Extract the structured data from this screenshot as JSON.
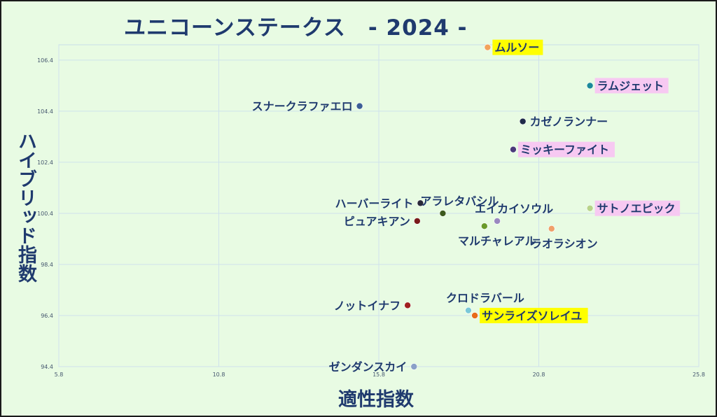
{
  "title": "ユニコーンステークス　- 2024 -",
  "chart_data": {
    "type": "scatter",
    "title": "ユニコーンステークス　- 2024 -",
    "xlabel": "適性指数",
    "ylabel": "ハイブリッド指数",
    "xlim": [
      5.8,
      25.8
    ],
    "ylim": [
      94.4,
      107.0
    ],
    "xticks": [
      "5.8",
      "10.8",
      "15.8",
      "20.8",
      "25.8"
    ],
    "yticks": [
      "94.4",
      "96.4",
      "98.4",
      "100.4",
      "102.4",
      "104.4",
      "106.4"
    ],
    "grid": true,
    "highlight_colors": {
      "yellow": "#ffff00",
      "pink": "#f7c9f2"
    },
    "points": [
      {
        "name": "ムルソー",
        "x": 19.2,
        "y": 106.9,
        "color": "#f2a25a",
        "highlight": "yellow",
        "anchor": "right"
      },
      {
        "name": "ラムジェット",
        "x": 22.4,
        "y": 105.4,
        "color": "#1b8a9a",
        "highlight": "pink",
        "anchor": "right"
      },
      {
        "name": "スナークラファエロ",
        "x": 15.2,
        "y": 104.6,
        "color": "#3c5e96",
        "highlight": "",
        "anchor": "left"
      },
      {
        "name": "カゼノランナー",
        "x": 20.3,
        "y": 104.0,
        "color": "#1f2b4a",
        "highlight": "",
        "anchor": "right"
      },
      {
        "name": "ミッキーファイト",
        "x": 20.0,
        "y": 102.9,
        "color": "#4a3a7a",
        "highlight": "pink",
        "anchor": "right"
      },
      {
        "name": "ハーバーライト",
        "x": 17.1,
        "y": 100.8,
        "color": "#2a2a3a",
        "highlight": "",
        "anchor": "left"
      },
      {
        "name": "アラレタバシル",
        "x": 17.8,
        "y": 100.4,
        "color": "#3d5a1e",
        "highlight": "",
        "anchor": "above"
      },
      {
        "name": "ピュアキアン",
        "x": 17.0,
        "y": 100.1,
        "color": "#7a1a1a",
        "highlight": "",
        "anchor": "left"
      },
      {
        "name": "エイカイソウル",
        "x": 19.5,
        "y": 100.1,
        "color": "#9a88c0",
        "highlight": "",
        "anchor": "above"
      },
      {
        "name": "サトノエピック",
        "x": 22.4,
        "y": 100.6,
        "color": "#b8d48a",
        "highlight": "pink",
        "anchor": "right"
      },
      {
        "name": "マルチャレアル",
        "x": 19.1,
        "y": 99.9,
        "color": "#6a9a2a",
        "highlight": "",
        "anchor": "below"
      },
      {
        "name": "ラオラシオン",
        "x": 21.2,
        "y": 99.8,
        "color": "#f0a06a",
        "highlight": "",
        "anchor": "below"
      },
      {
        "name": "ノットイナフ",
        "x": 16.7,
        "y": 96.8,
        "color": "#a02020",
        "highlight": "",
        "anchor": "left"
      },
      {
        "name": "クロドラバール",
        "x": 18.6,
        "y": 96.6,
        "color": "#7ac8d8",
        "highlight": "",
        "anchor": "above"
      },
      {
        "name": "サンライズソレイユ",
        "x": 18.8,
        "y": 96.4,
        "color": "#e86a1a",
        "highlight": "yellow",
        "anchor": "right"
      },
      {
        "name": "ゼンダンスカイ",
        "x": 16.9,
        "y": 94.4,
        "color": "#8aa0c8",
        "highlight": "",
        "anchor": "left"
      }
    ]
  }
}
